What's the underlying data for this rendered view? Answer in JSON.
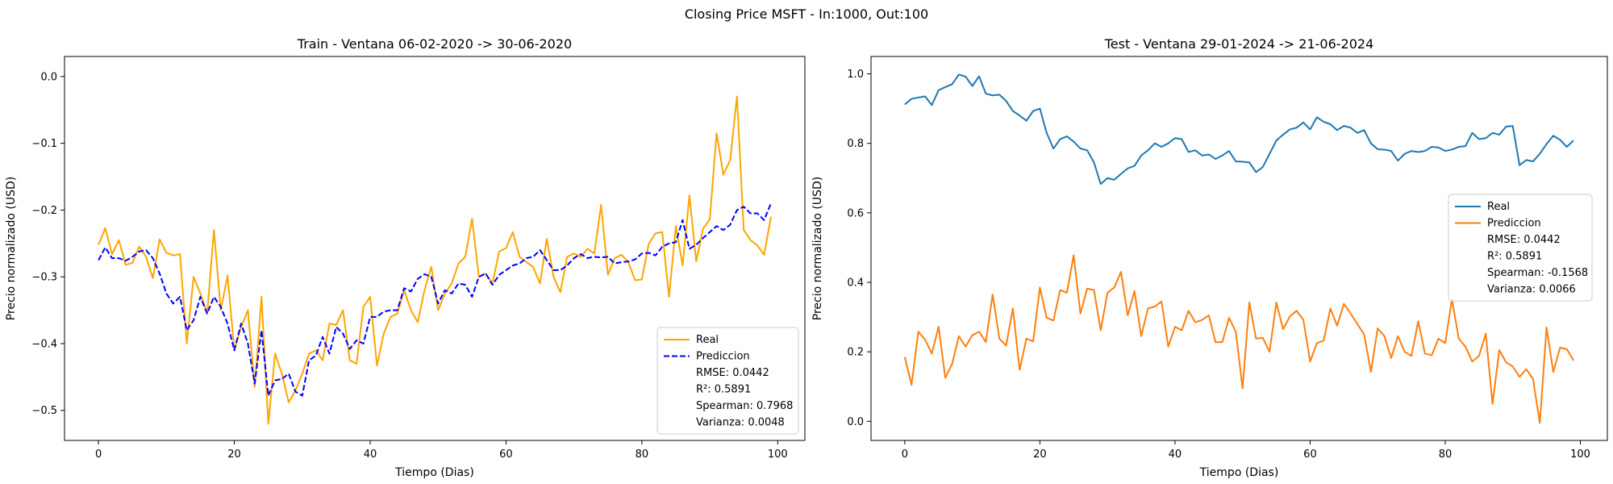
{
  "figure": {
    "suptitle": "Closing Price MSFT - In:1000, Out:100",
    "background": "#ffffff"
  },
  "chart_data": [
    {
      "type": "line",
      "title": "Train - Ventana 06-02-2020 -> 30-06-2020",
      "xlabel": "Tiempo (Dias)",
      "ylabel": "Precio normalizado (USD)",
      "xlim": [
        -5,
        104
      ],
      "ylim": [
        -0.545,
        0.03
      ],
      "xticks": [
        0,
        20,
        40,
        60,
        80,
        100
      ],
      "yticks": [
        0.0,
        -0.1,
        -0.2,
        -0.3,
        -0.4,
        -0.5
      ],
      "ytick_labels": [
        "0.0",
        "−0.1",
        "−0.2",
        "−0.3",
        "−0.4",
        "−0.5"
      ],
      "grid": false,
      "legend": {
        "position": "lower right",
        "entries": [
          "Real",
          "Prediccion"
        ],
        "stats": [
          "RMSE: 0.0442",
          "R²: 0.5891",
          "Spearman: 0.7968",
          "Varianza: 0.0048"
        ]
      },
      "series": [
        {
          "name": "Real",
          "color": "#FFA500",
          "dash": "solid",
          "x_start": 0,
          "values": [
            -0.252,
            -0.227,
            -0.266,
            -0.245,
            -0.282,
            -0.279,
            -0.255,
            -0.27,
            -0.302,
            -0.244,
            -0.264,
            -0.268,
            -0.266,
            -0.4,
            -0.3,
            -0.325,
            -0.355,
            -0.23,
            -0.35,
            -0.298,
            -0.41,
            -0.375,
            -0.35,
            -0.465,
            -0.33,
            -0.52,
            -0.415,
            -0.445,
            -0.488,
            -0.47,
            -0.445,
            -0.415,
            -0.41,
            -0.425,
            -0.37,
            -0.372,
            -0.35,
            -0.425,
            -0.43,
            -0.345,
            -0.33,
            -0.433,
            -0.385,
            -0.36,
            -0.355,
            -0.32,
            -0.35,
            -0.368,
            -0.32,
            -0.285,
            -0.35,
            -0.325,
            -0.31,
            -0.28,
            -0.27,
            -0.213,
            -0.3,
            -0.295,
            -0.31,
            -0.262,
            -0.257,
            -0.233,
            -0.27,
            -0.278,
            -0.285,
            -0.31,
            -0.243,
            -0.3,
            -0.323,
            -0.27,
            -0.265,
            -0.27,
            -0.258,
            -0.265,
            -0.192,
            -0.297,
            -0.272,
            -0.267,
            -0.278,
            -0.305,
            -0.304,
            -0.251,
            -0.235,
            -0.233,
            -0.33,
            -0.224,
            -0.283,
            -0.178,
            -0.277,
            -0.228,
            -0.214,
            -0.085,
            -0.147,
            -0.125,
            -0.03,
            -0.23,
            -0.245,
            -0.253,
            -0.267,
            -0.21
          ]
        },
        {
          "name": "Prediccion",
          "color": "#0000FF",
          "dash": "dashed",
          "x_start": 0,
          "values": [
            -0.275,
            -0.256,
            -0.272,
            -0.272,
            -0.276,
            -0.27,
            -0.262,
            -0.26,
            -0.272,
            -0.295,
            -0.325,
            -0.34,
            -0.33,
            -0.38,
            -0.365,
            -0.33,
            -0.355,
            -0.33,
            -0.345,
            -0.37,
            -0.41,
            -0.37,
            -0.4,
            -0.46,
            -0.38,
            -0.478,
            -0.455,
            -0.453,
            -0.445,
            -0.472,
            -0.478,
            -0.425,
            -0.418,
            -0.39,
            -0.415,
            -0.375,
            -0.385,
            -0.408,
            -0.395,
            -0.4,
            -0.36,
            -0.36,
            -0.352,
            -0.35,
            -0.35,
            -0.317,
            -0.322,
            -0.303,
            -0.296,
            -0.3,
            -0.34,
            -0.32,
            -0.325,
            -0.31,
            -0.312,
            -0.33,
            -0.3,
            -0.295,
            -0.312,
            -0.297,
            -0.29,
            -0.283,
            -0.28,
            -0.272,
            -0.27,
            -0.26,
            -0.275,
            -0.29,
            -0.29,
            -0.283,
            -0.272,
            -0.266,
            -0.272,
            -0.27,
            -0.271,
            -0.27,
            -0.28,
            -0.278,
            -0.277,
            -0.274,
            -0.265,
            -0.264,
            -0.268,
            -0.255,
            -0.25,
            -0.248,
            -0.215,
            -0.258,
            -0.252,
            -0.242,
            -0.233,
            -0.224,
            -0.23,
            -0.222,
            -0.2,
            -0.195,
            -0.205,
            -0.205,
            -0.215,
            -0.19
          ]
        }
      ]
    },
    {
      "type": "line",
      "title": "Test - Ventana 29-01-2024 -> 21-06-2024",
      "xlabel": "Tiempo (Dias)",
      "ylabel": "Precio normalizado (USD)",
      "xlim": [
        -5,
        104
      ],
      "ylim": [
        -0.055,
        1.05
      ],
      "xticks": [
        0,
        20,
        40,
        60,
        80,
        100
      ],
      "yticks": [
        0.0,
        0.2,
        0.4,
        0.6,
        0.8,
        1.0
      ],
      "ytick_labels": [
        "0.0",
        "0.2",
        "0.4",
        "0.6",
        "0.8",
        "1.0"
      ],
      "grid": false,
      "legend": {
        "position": "center right",
        "entries": [
          "Real",
          "Prediccion"
        ],
        "stats": [
          "RMSE: 0.0442",
          "R²: 0.5891",
          "Spearman: -0.1568",
          "Varianza: 0.0066"
        ]
      },
      "series": [
        {
          "name": "Real",
          "color": "#1f77b4",
          "dash": "solid",
          "x_start": 0,
          "values": [
            0.912,
            0.928,
            0.932,
            0.935,
            0.91,
            0.953,
            0.962,
            0.97,
            0.998,
            0.992,
            0.965,
            0.993,
            0.943,
            0.938,
            0.94,
            0.922,
            0.893,
            0.88,
            0.865,
            0.893,
            0.9,
            0.83,
            0.785,
            0.812,
            0.82,
            0.805,
            0.785,
            0.78,
            0.745,
            0.683,
            0.7,
            0.695,
            0.712,
            0.728,
            0.735,
            0.765,
            0.78,
            0.8,
            0.79,
            0.8,
            0.815,
            0.812,
            0.775,
            0.78,
            0.765,
            0.768,
            0.755,
            0.765,
            0.778,
            0.748,
            0.747,
            0.745,
            0.717,
            0.732,
            0.77,
            0.808,
            0.825,
            0.84,
            0.845,
            0.86,
            0.84,
            0.875,
            0.862,
            0.855,
            0.838,
            0.85,
            0.845,
            0.83,
            0.838,
            0.8,
            0.783,
            0.782,
            0.778,
            0.75,
            0.77,
            0.778,
            0.775,
            0.778,
            0.79,
            0.788,
            0.778,
            0.782,
            0.79,
            0.792,
            0.83,
            0.812,
            0.815,
            0.83,
            0.825,
            0.848,
            0.85,
            0.737,
            0.752,
            0.748,
            0.77,
            0.798,
            0.822,
            0.81,
            0.79,
            0.808
          ]
        },
        {
          "name": "Prediccion",
          "color": "#ff7f0e",
          "dash": "solid",
          "x_start": 0,
          "values": [
            0.185,
            0.105,
            0.258,
            0.235,
            0.195,
            0.272,
            0.125,
            0.165,
            0.245,
            0.215,
            0.248,
            0.258,
            0.228,
            0.365,
            0.238,
            0.218,
            0.325,
            0.148,
            0.238,
            0.23,
            0.385,
            0.298,
            0.29,
            0.378,
            0.37,
            0.478,
            0.31,
            0.382,
            0.378,
            0.262,
            0.37,
            0.385,
            0.43,
            0.305,
            0.375,
            0.245,
            0.325,
            0.33,
            0.345,
            0.215,
            0.272,
            0.262,
            0.318,
            0.285,
            0.292,
            0.305,
            0.228,
            0.228,
            0.298,
            0.258,
            0.095,
            0.342,
            0.238,
            0.24,
            0.2,
            0.342,
            0.265,
            0.302,
            0.318,
            0.292,
            0.172,
            0.225,
            0.232,
            0.325,
            0.275,
            0.338,
            0.31,
            0.28,
            0.25,
            0.142,
            0.268,
            0.245,
            0.182,
            0.245,
            0.2,
            0.188,
            0.288,
            0.195,
            0.19,
            0.238,
            0.225,
            0.352,
            0.238,
            0.215,
            0.172,
            0.188,
            0.252,
            0.05,
            0.205,
            0.17,
            0.158,
            0.128,
            0.15,
            0.122,
            -0.005,
            0.27,
            0.142,
            0.212,
            0.208,
            0.175
          ]
        }
      ]
    }
  ]
}
